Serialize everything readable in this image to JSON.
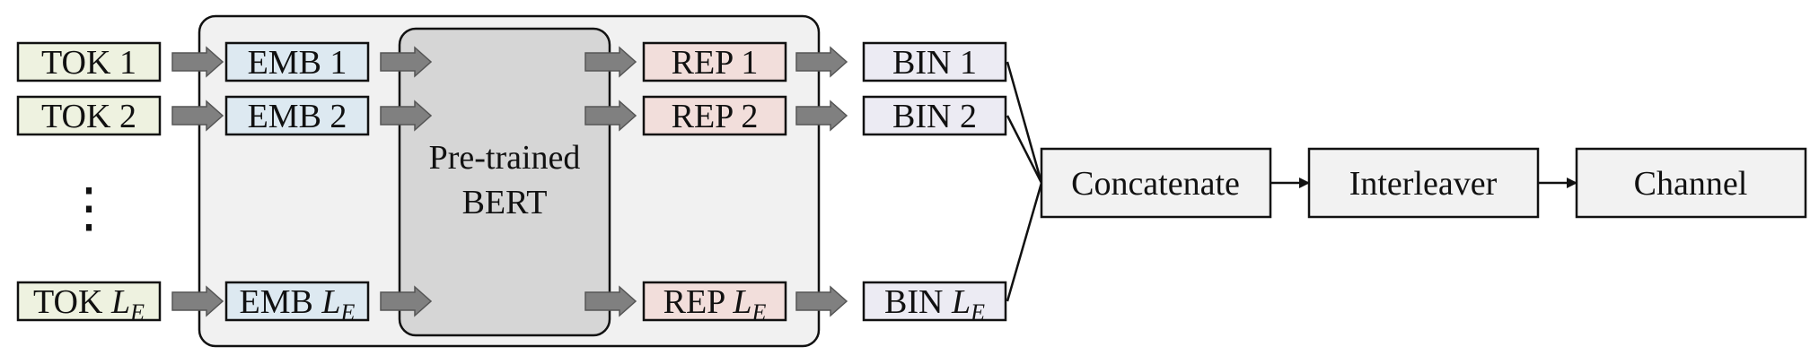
{
  "colors": {
    "token_fill": "#eef2e0",
    "emb_fill": "#dde9f1",
    "rep_fill": "#f2dedb",
    "bin_fill": "#ecebf3",
    "module_fill": "#f1f1f1",
    "bert_fill": "#d6d6d6",
    "block_fill": "#f2f2f2",
    "arrow_fill": "#808080",
    "stroke": "#111111"
  },
  "tokens": [
    {
      "prefix": "TOK",
      "index": "1"
    },
    {
      "prefix": "TOK",
      "index": "2"
    },
    {
      "prefix": "TOK",
      "index": "L",
      "sub": "E"
    }
  ],
  "embeddings": [
    {
      "prefix": "EMB",
      "index": "1"
    },
    {
      "prefix": "EMB",
      "index": "2"
    },
    {
      "prefix": "EMB",
      "index": "L",
      "sub": "E"
    }
  ],
  "bert": {
    "line1": "Pre-trained",
    "line2": "BERT"
  },
  "representations": [
    {
      "prefix": "REP",
      "index": "1"
    },
    {
      "prefix": "REP",
      "index": "2"
    },
    {
      "prefix": "REP",
      "index": "L",
      "sub": "E"
    }
  ],
  "binaries": [
    {
      "prefix": "BIN",
      "index": "1"
    },
    {
      "prefix": "BIN",
      "index": "2"
    },
    {
      "prefix": "BIN",
      "index": "L",
      "sub": "E"
    }
  ],
  "ellipsis": "⋮",
  "pipeline": {
    "concatenate": "Concatenate",
    "interleaver": "Interleaver",
    "channel": "Channel"
  }
}
